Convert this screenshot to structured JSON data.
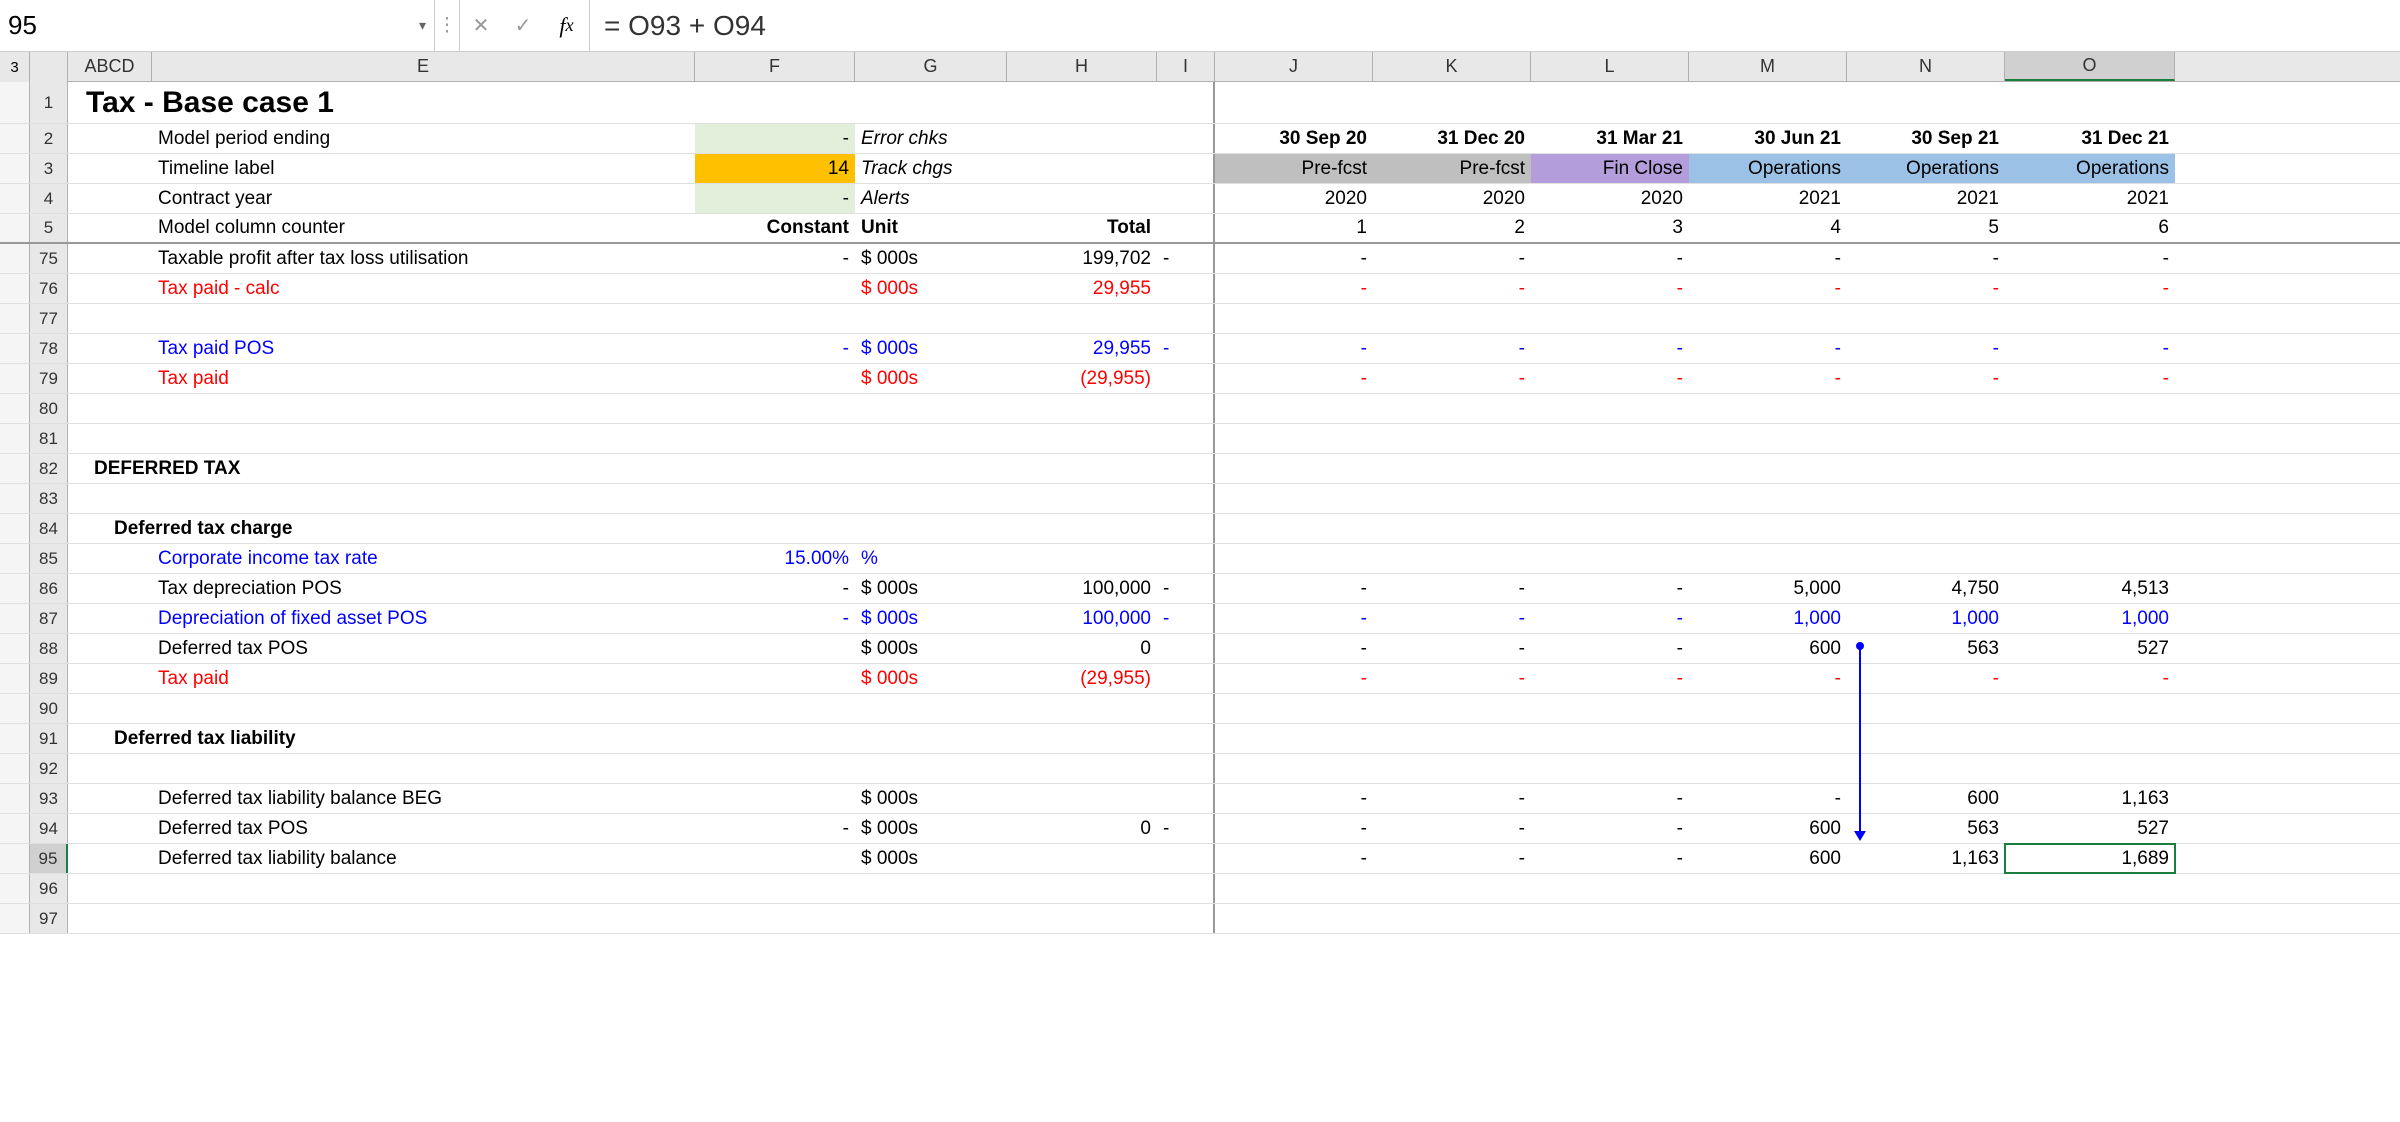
{
  "nameBox": "95",
  "formula": "= O93 + O94",
  "colWidths": {
    "group": 30,
    "corner": 38,
    "A": 20,
    "B": 20,
    "C": 22,
    "D": 22,
    "E": 543,
    "F": 160,
    "G": 152,
    "H": 150,
    "I": 58,
    "J": 158,
    "K": 158,
    "L": 158,
    "M": 158,
    "N": 158,
    "O": 170
  },
  "colLetters": [
    "A",
    "B",
    "C",
    "D",
    "E",
    "F",
    "G",
    "H",
    "I",
    "J",
    "K",
    "L",
    "M",
    "N",
    "O"
  ],
  "groupLabel": "3",
  "title": "Tax - Base case 1",
  "headerRows": {
    "r2": {
      "E": "Model period ending",
      "F": "-",
      "G": "Error chks",
      "J": "30 Sep 20",
      "K": "31 Dec 20",
      "L": "31 Mar 21",
      "M": "30 Jun 21",
      "N": "30 Sep 21",
      "O": "31 Dec 21"
    },
    "r3": {
      "E": "Timeline label",
      "F": "14",
      "G": "Track chgs",
      "J": "Pre-fcst",
      "K": "Pre-fcst",
      "L": "Fin Close",
      "M": "Operations",
      "N": "Operations",
      "O": "Operations"
    },
    "r4": {
      "E": "Contract year",
      "F": "-",
      "G": "Alerts",
      "J": "2020",
      "K": "2020",
      "L": "2020",
      "M": "2021",
      "N": "2021",
      "O": "2021"
    },
    "r5": {
      "E": "Model column counter",
      "F": "Constant",
      "G": "Unit",
      "H": "Total",
      "J": "1",
      "K": "2",
      "L": "3",
      "M": "4",
      "N": "5",
      "O": "6"
    }
  },
  "dataRows": [
    {
      "r": 75,
      "E": "Taxable profit after tax loss utilisation",
      "F": "-",
      "G": "$ 000s",
      "H": "199,702",
      "I": "-",
      "J": "-",
      "K": "-",
      "L": "-",
      "M": "-",
      "N": "-",
      "O": "-"
    },
    {
      "r": 76,
      "E": "Tax paid - calc",
      "G": "$ 000s",
      "H": "29,955",
      "J": "-",
      "K": "-",
      "L": "-",
      "M": "-",
      "N": "-",
      "O": "-",
      "style": "red"
    },
    {
      "r": 77
    },
    {
      "r": 78,
      "E": "Tax paid POS",
      "F": "-",
      "G": "$ 000s",
      "H": "29,955",
      "I": "-",
      "J": "-",
      "K": "-",
      "L": "-",
      "M": "-",
      "N": "-",
      "O": "-",
      "style": "blue"
    },
    {
      "r": 79,
      "E": "Tax paid",
      "G": "$ 000s",
      "H": "(29,955)",
      "J": "-",
      "K": "-",
      "L": "-",
      "M": "-",
      "N": "-",
      "O": "-",
      "style": "red"
    },
    {
      "r": 80
    },
    {
      "r": 81
    },
    {
      "r": 82,
      "B": "DEFERRED TAX",
      "sectionBold": true
    },
    {
      "r": 83
    },
    {
      "r": 84,
      "C": "Deferred tax charge",
      "sectionBold": true
    },
    {
      "r": 85,
      "E": "Corporate income tax rate",
      "F": "15.00%",
      "G": "%",
      "style": "blue"
    },
    {
      "r": 86,
      "E": "Tax depreciation POS",
      "F": "-",
      "G": "$ 000s",
      "H": "100,000",
      "I": "-",
      "J": "-",
      "K": "-",
      "L": "-",
      "M": "5,000",
      "N": "4,750",
      "O": "4,513"
    },
    {
      "r": 87,
      "E": "Depreciation of fixed asset POS",
      "F": "-",
      "G": "$ 000s",
      "H": "100,000",
      "I": "-",
      "J": "-",
      "K": "-",
      "L": "-",
      "M": "1,000",
      "N": "1,000",
      "O": "1,000",
      "style": "blue"
    },
    {
      "r": 88,
      "E": "Deferred tax POS",
      "G": "$ 000s",
      "H": "0",
      "J": "-",
      "K": "-",
      "L": "-",
      "M": "600",
      "N": "563",
      "O": "527"
    },
    {
      "r": 89,
      "E": "Tax paid",
      "G": "$ 000s",
      "H": "(29,955)",
      "J": "-",
      "K": "-",
      "L": "-",
      "M": "-",
      "N": "-",
      "O": "-",
      "style": "red"
    },
    {
      "r": 90
    },
    {
      "r": 91,
      "C": "Deferred tax liability",
      "sectionBold": true
    },
    {
      "r": 92
    },
    {
      "r": 93,
      "E": "Deferred tax liability balance BEG",
      "G": "$ 000s",
      "J": "-",
      "K": "-",
      "L": "-",
      "M": "-",
      "N": "600",
      "O": "1,163"
    },
    {
      "r": 94,
      "E": "Deferred tax POS",
      "F": "-",
      "G": "$ 000s",
      "H": "0",
      "I": "-",
      "J": "-",
      "K": "-",
      "L": "-",
      "M": "600",
      "N": "563",
      "O": "527"
    },
    {
      "r": 95,
      "E": "Deferred tax liability balance",
      "G": "$ 000s",
      "J": "-",
      "K": "-",
      "L": "-",
      "M": "600",
      "N": "1,163",
      "O": "1,689",
      "selected": true
    },
    {
      "r": 96
    },
    {
      "r": 97
    }
  ],
  "styling": {
    "r2FBg": "bg-green",
    "r3FBg": "bg-yellow",
    "r4FBg": "bg-green",
    "r3Jbg": "bg-grey",
    "r3Kbg": "bg-grey",
    "r3Lbg": "bg-purple",
    "r3Mbg": "bg-lightblue",
    "r3Nbg": "bg-lightblue",
    "r3Obg": "bg-lightblue"
  }
}
